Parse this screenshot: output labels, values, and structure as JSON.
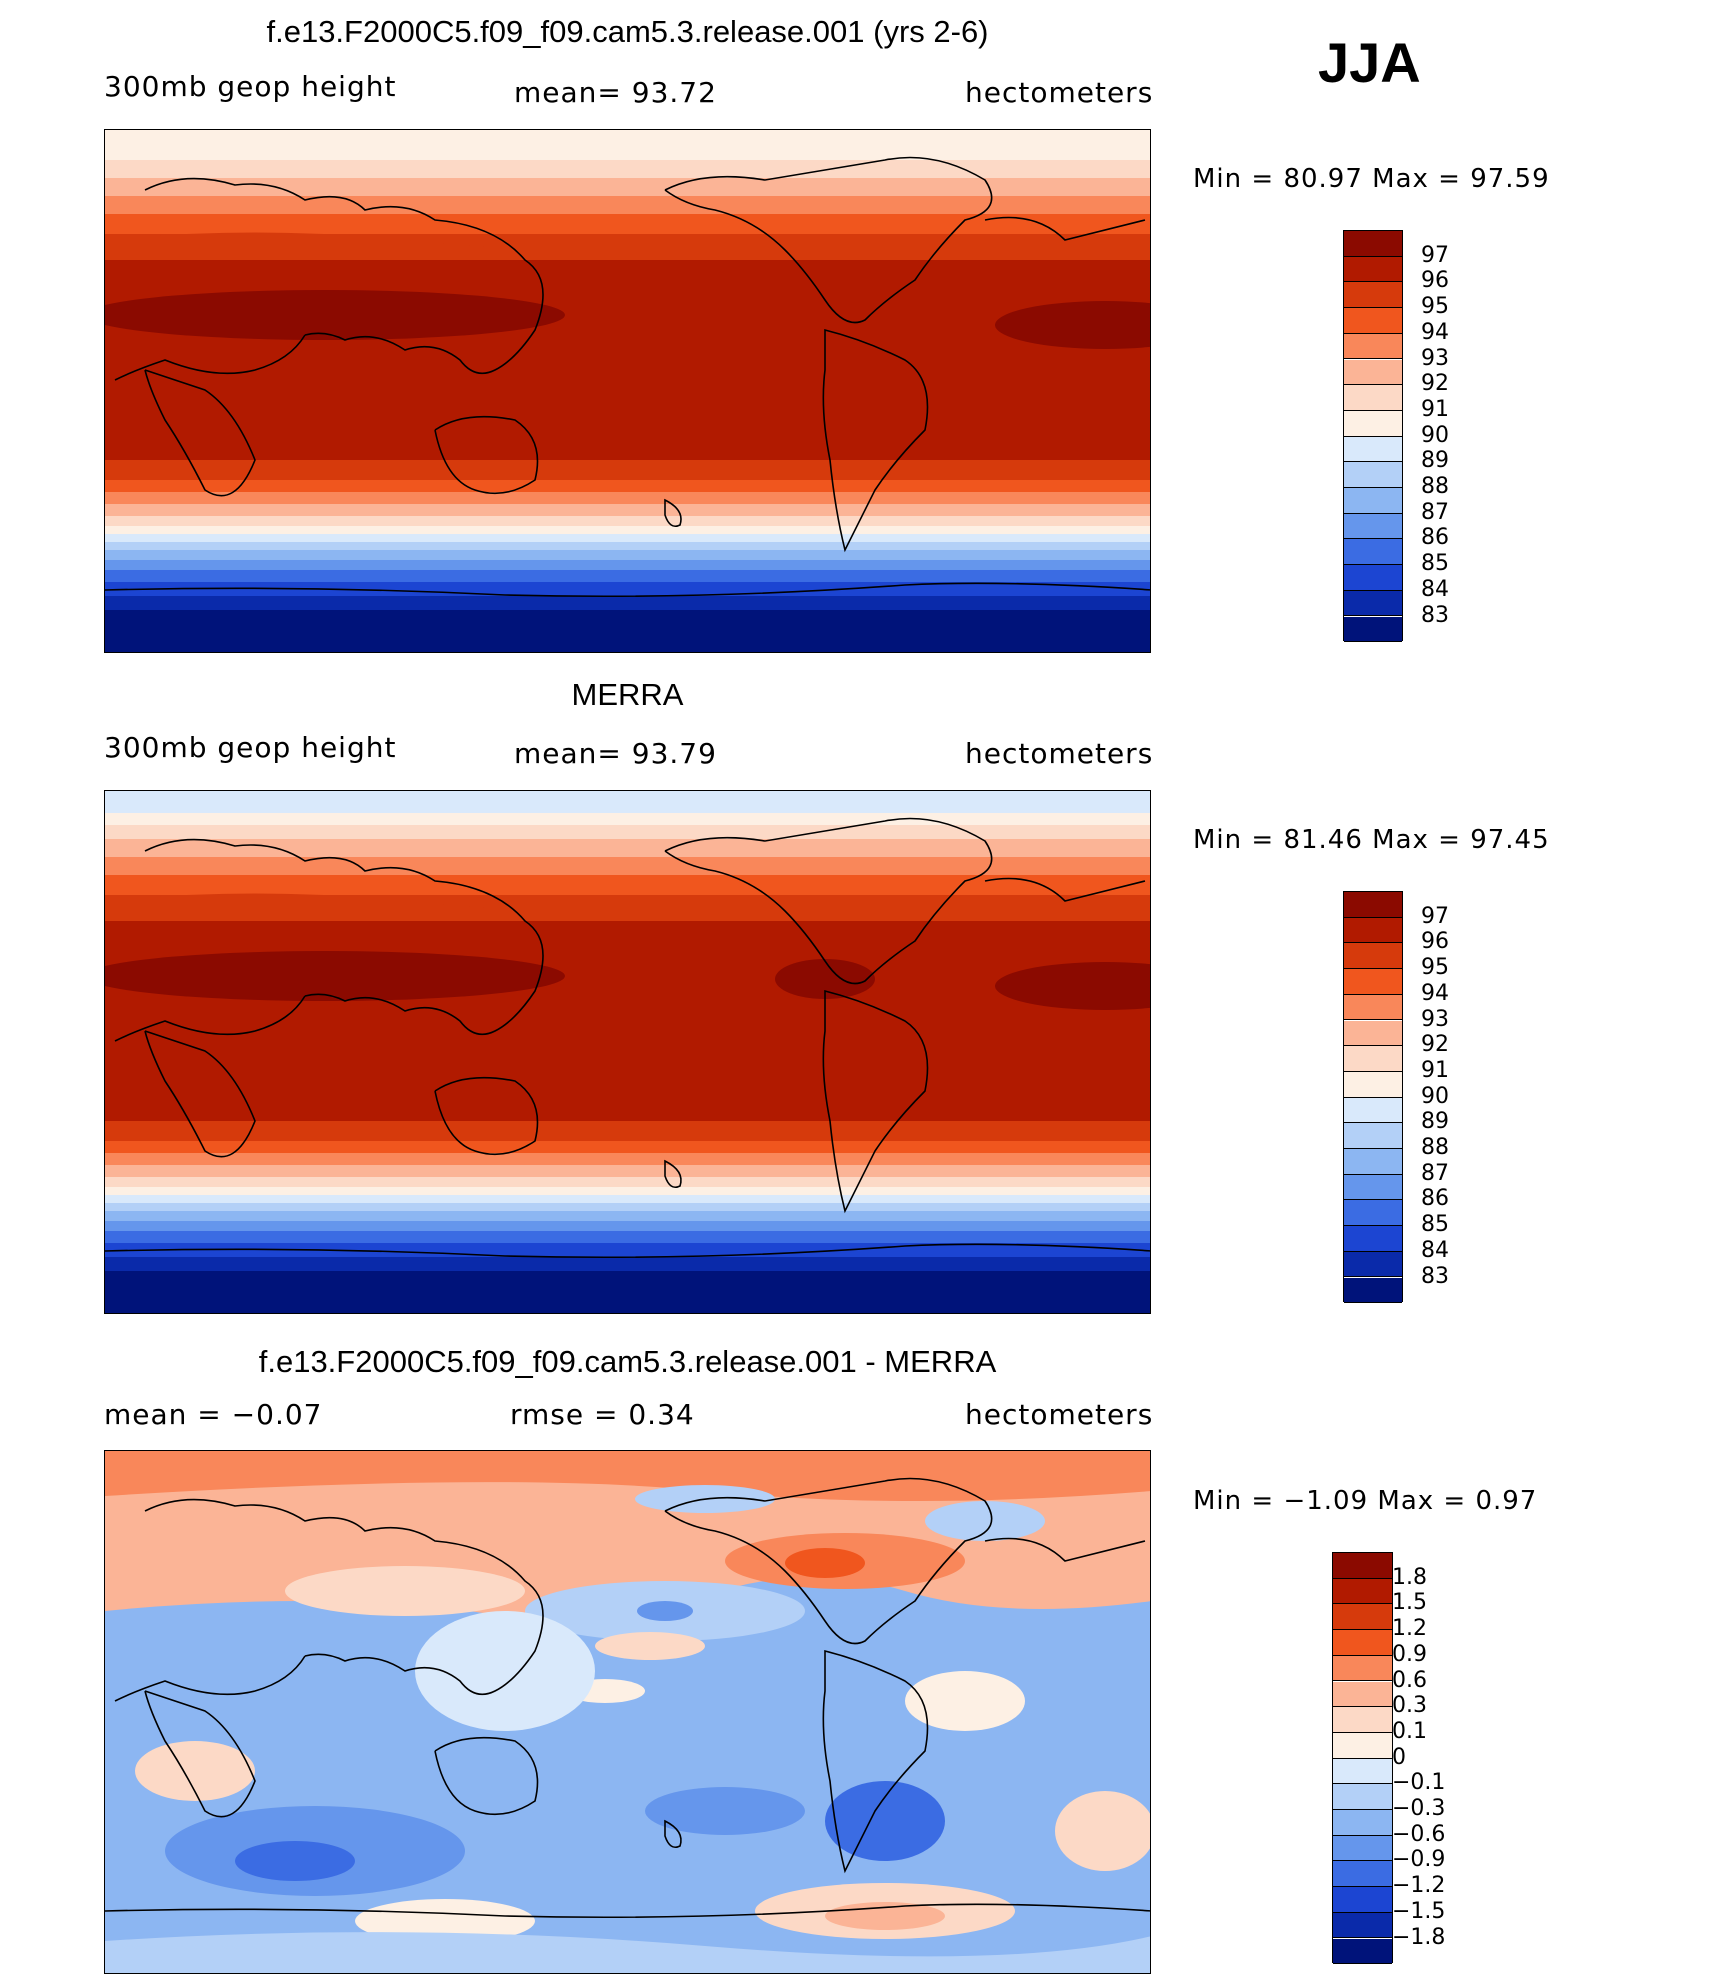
{
  "season": "JJA",
  "panels": [
    {
      "id": "model",
      "title": "f.e13.F2000C5.f09_f09.cam5.3.release.001 (yrs 2-6)",
      "left_label": "300mb  geop  height",
      "center_label": "mean=   93.72",
      "right_label": "hectometers",
      "minmax": "Min  =   80.97  Max  =   97.59"
    },
    {
      "id": "obs",
      "title": "MERRA",
      "left_label": "300mb  geop  height",
      "center_label": "mean=   93.79",
      "right_label": "hectometers",
      "minmax": "Min  =   81.46  Max  =   97.45"
    },
    {
      "id": "diff",
      "title": "f.e13.F2000C5.f09_f09.cam5.3.release.001 - MERRA",
      "left_label": "mean  =    −0.07",
      "center_label": "rmse  =     0.34",
      "right_label": "hectometers",
      "minmax": "Min  =   −1.09  Max  =     0.97"
    }
  ],
  "colorbars": {
    "absolute": {
      "labels": [
        "97",
        "96",
        "95",
        "94",
        "93",
        "92",
        "91",
        "90",
        "89",
        "88",
        "87",
        "86",
        "85",
        "84",
        "83"
      ],
      "colors": [
        "#8b0a00",
        "#b11a00",
        "#d63a0c",
        "#f0561e",
        "#f9875a",
        "#fbb496",
        "#fcd9c6",
        "#fdf0e4",
        "#d9e9fb",
        "#b3d0f7",
        "#8cb6f2",
        "#6596ec",
        "#3b6ce3",
        "#1c45d2",
        "#0a2aaa",
        "#00137a"
      ]
    },
    "difference": {
      "labels": [
        "1.8",
        "1.5",
        "1.2",
        "0.9",
        "0.6",
        "0.3",
        "0.1",
        "0",
        "−0.1",
        "−0.3",
        "−0.6",
        "−0.9",
        "−1.2",
        "−1.5",
        "−1.8"
      ],
      "colors": [
        "#8b0a00",
        "#b11a00",
        "#d63a0c",
        "#f0561e",
        "#f9875a",
        "#fbb496",
        "#fcd9c6",
        "#fdf0e4",
        "#d9e9fb",
        "#b3d0f7",
        "#8cb6f2",
        "#6596ec",
        "#3b6ce3",
        "#1c45d2",
        "#0a2aaa",
        "#00137a"
      ]
    }
  }
}
